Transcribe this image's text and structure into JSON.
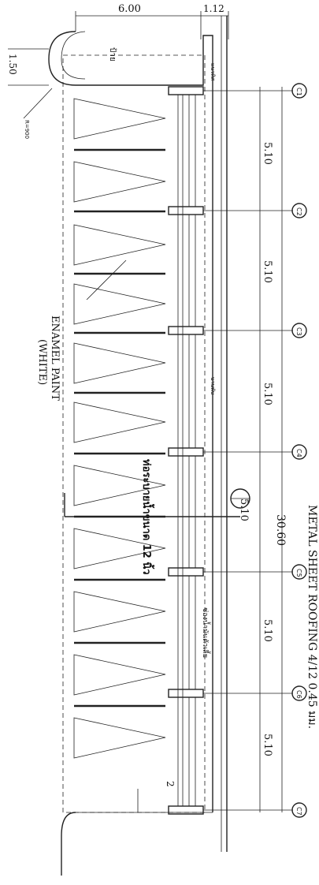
{
  "dimensions": {
    "top_width": "6.00",
    "top_offset": "1.12",
    "end_height": "1.50",
    "span_total": "30.60",
    "span_segments": [
      "5.10",
      "5.10",
      "5.10",
      "5.10",
      "5.10",
      "5.10"
    ],
    "small_dim": "2",
    "radius": "R=900"
  },
  "grid_bubbles": [
    "C1",
    "C2",
    "C3",
    "C4",
    "C5",
    "C6",
    "C7"
  ],
  "labels": {
    "enamel_line1": "ENAMEL PAINT",
    "enamel_line2": "(WHITE)",
    "metal_sheet": "METAL SHEET ROOFING 4/12 0.45 มม.",
    "drain_pipe": "ท่อระบายน้ำขนาด 12 นิ้ว",
    "thai_note": "ช่องน้ำมันตัวเลี้ย",
    "thai_top": "ป้าย",
    "thai_sub": "แนวทิศ",
    "thai_mark": "บานพับ"
  },
  "colors": {
    "ink": "#222222",
    "background": "#ffffff"
  }
}
